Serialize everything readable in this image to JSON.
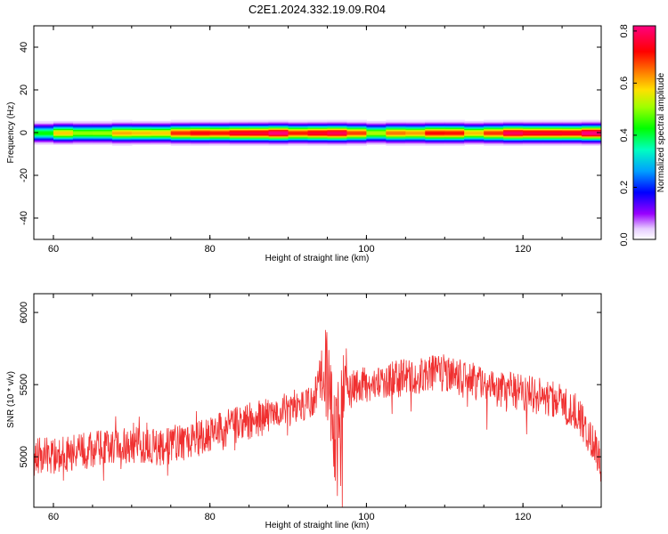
{
  "title": "C2E1.2024.332.19.09.R04",
  "chart_data": [
    {
      "type": "heatmap",
      "xlabel": "Height of straight line (km)",
      "ylabel": "Frequency (Hz)",
      "xlim": [
        57.5,
        130
      ],
      "ylim": [
        -50,
        50
      ],
      "xticks": [
        60,
        80,
        100,
        120
      ],
      "yticks": [
        -40,
        -20,
        0,
        20,
        40
      ],
      "colorbar": {
        "label": "Normalized spectral amplitude",
        "range": [
          0,
          0.82
        ],
        "ticks": [
          0.0,
          0.2,
          0.4,
          0.6,
          0.8
        ],
        "colormap": "rainbow (violet-blue-cyan-green-yellow-orange-red-magenta)"
      },
      "band": {
        "center_hz": 0,
        "halfwidth_core_hz": 2,
        "halfwidth_outer_hz": 5,
        "amplitude_profile": [
          {
            "x": 58,
            "peak": 0.5
          },
          {
            "x": 65,
            "peak": 0.55
          },
          {
            "x": 72,
            "peak": 0.6
          },
          {
            "x": 80,
            "peak": 0.7
          },
          {
            "x": 88,
            "peak": 0.75
          },
          {
            "x": 95,
            "peak": 0.8
          },
          {
            "x": 100,
            "peak": 0.6
          },
          {
            "x": 110,
            "peak": 0.65
          },
          {
            "x": 120,
            "peak": 0.72
          },
          {
            "x": 130,
            "peak": 0.75
          }
        ]
      }
    },
    {
      "type": "line",
      "xlabel": "Height of straight line (km)",
      "ylabel": "SNR (10 * v/v)",
      "xlim": [
        57.5,
        130
      ],
      "ylim": [
        4650,
        6130
      ],
      "xticks": [
        60,
        80,
        100,
        120
      ],
      "yticks": [
        5000,
        5500,
        6000
      ],
      "color": "#f03030",
      "envelope": [
        {
          "x": 57.5,
          "y": 5000
        },
        {
          "x": 62,
          "y": 5020
        },
        {
          "x": 66,
          "y": 5060
        },
        {
          "x": 70,
          "y": 5080
        },
        {
          "x": 74,
          "y": 5060
        },
        {
          "x": 78,
          "y": 5120
        },
        {
          "x": 82,
          "y": 5200
        },
        {
          "x": 86,
          "y": 5260
        },
        {
          "x": 90,
          "y": 5320
        },
        {
          "x": 93,
          "y": 5380
        },
        {
          "x": 95,
          "y": 5600
        },
        {
          "x": 96,
          "y": 5100
        },
        {
          "x": 97,
          "y": 5450
        },
        {
          "x": 100,
          "y": 5500
        },
        {
          "x": 104,
          "y": 5540
        },
        {
          "x": 108,
          "y": 5580
        },
        {
          "x": 112,
          "y": 5560
        },
        {
          "x": 116,
          "y": 5480
        },
        {
          "x": 120,
          "y": 5440
        },
        {
          "x": 124,
          "y": 5400
        },
        {
          "x": 127,
          "y": 5300
        },
        {
          "x": 129,
          "y": 5100
        },
        {
          "x": 130,
          "y": 4950
        }
      ],
      "noise_amplitude": 130
    }
  ]
}
